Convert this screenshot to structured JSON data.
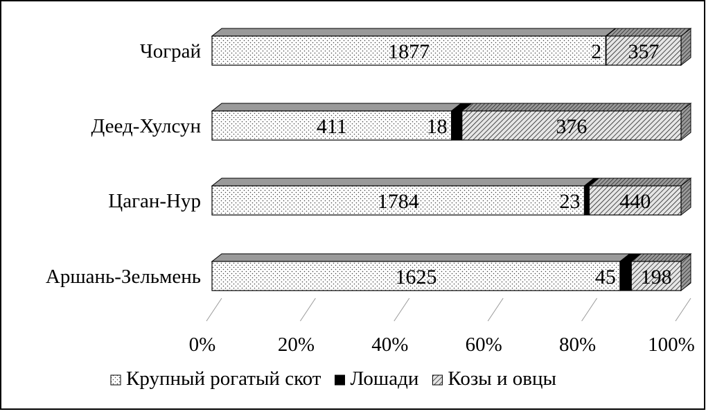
{
  "chart_data": {
    "type": "bar",
    "orientation": "horizontal",
    "stacked": "percent",
    "style": "3d",
    "categories": [
      "Чограй",
      "Деед-Хулсун",
      "Цаган-Нур",
      "Аршань-Зельмень"
    ],
    "series": [
      {
        "name": "Крупный рогатый скот",
        "values": [
          1877,
          411,
          1784,
          1625
        ],
        "pattern": "dots",
        "color": "#ffffff"
      },
      {
        "name": "Лошади",
        "values": [
          2,
          18,
          23,
          45
        ],
        "pattern": "solid",
        "color": "#000000"
      },
      {
        "name": "Козы и овцы",
        "values": [
          357,
          376,
          440,
          198
        ],
        "pattern": "diagonal-hatch",
        "color": "#ffffff"
      }
    ],
    "x_ticks": [
      "0%",
      "20%",
      "40%",
      "60%",
      "80%",
      "100%"
    ],
    "xlim": [
      0,
      100
    ],
    "legend_position": "bottom",
    "grid": false
  }
}
